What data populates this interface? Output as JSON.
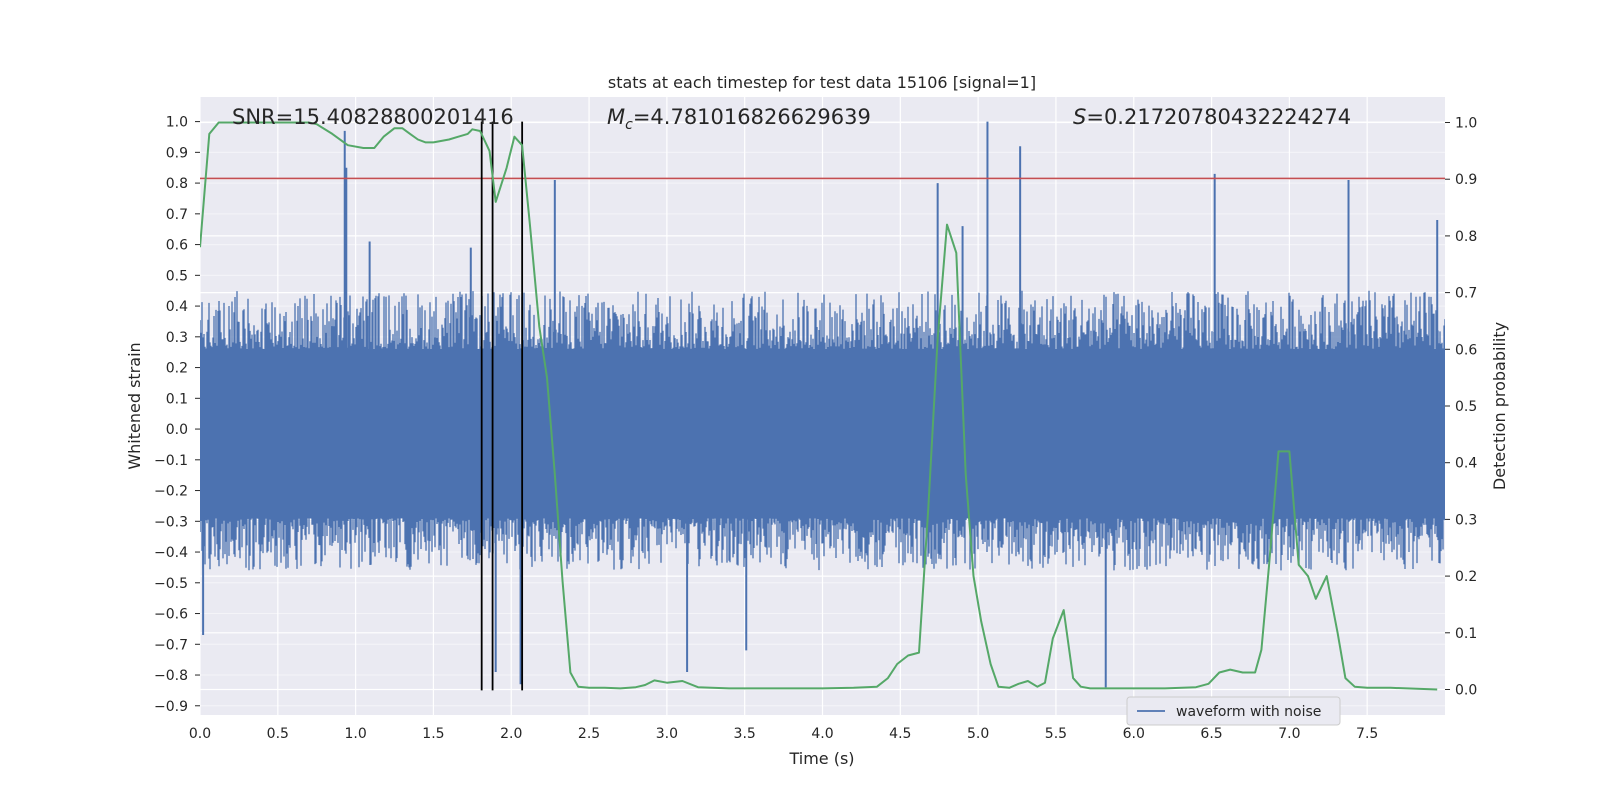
{
  "chart_data": {
    "type": "line",
    "title": "stats at each timestep for test data 15106 [signal=1]",
    "xlabel": "Time (s)",
    "ylabel": "Whitened strain",
    "y2label": "Detection probability",
    "xlim": [
      0.0,
      8.0
    ],
    "ylim": [
      -0.93,
      1.08
    ],
    "y2lim": [
      -0.045,
      1.045
    ],
    "xticks": [
      0.0,
      0.5,
      1.0,
      1.5,
      2.0,
      2.5,
      3.0,
      3.5,
      4.0,
      4.5,
      5.0,
      5.5,
      6.0,
      6.5,
      7.0,
      7.5
    ],
    "xtick_labels": [
      "0.0",
      "0.5",
      "1.0",
      "1.5",
      "2.0",
      "2.5",
      "3.0",
      "3.5",
      "4.0",
      "4.5",
      "5.0",
      "5.5",
      "6.0",
      "6.5",
      "7.0",
      "7.5"
    ],
    "yticks": [
      1.0,
      0.9,
      0.8,
      0.7,
      0.6,
      0.5,
      0.4,
      0.3,
      0.2,
      0.1,
      0.0,
      -0.1,
      -0.2,
      -0.3,
      -0.4,
      -0.5,
      -0.6,
      -0.7,
      -0.8,
      -0.9
    ],
    "ytick_labels": [
      "1.0",
      "0.9",
      "0.8",
      "0.7",
      "0.6",
      "0.5",
      "0.4",
      "0.3",
      "0.2",
      "0.1",
      "0.0",
      "−0.1",
      "−0.2",
      "−0.3",
      "−0.4",
      "−0.5",
      "−0.6",
      "−0.7",
      "−0.8",
      "−0.9"
    ],
    "y2ticks": [
      1.0,
      0.9,
      0.8,
      0.7,
      0.6,
      0.5,
      0.4,
      0.3,
      0.2,
      0.1,
      0.0
    ],
    "y2tick_labels": [
      "1.0",
      "0.9",
      "0.8",
      "0.7",
      "0.6",
      "0.5",
      "0.4",
      "0.3",
      "0.2",
      "0.1",
      "0.0"
    ],
    "annotations": {
      "snr": "SNR=15.40828800201416",
      "mc_symbol": "M",
      "mc_sub": "c",
      "mc_value": "=4.781016826629639",
      "s_symbol": "S",
      "s_value": "=0.21720780432224274"
    },
    "threshold": {
      "y": 0.815,
      "color": "#c44e52"
    },
    "vlines": [
      {
        "x": 1.81,
        "ymin": -0.85,
        "ymax": 1.0
      },
      {
        "x": 1.88,
        "ymin": -0.85,
        "ymax": 1.0
      },
      {
        "x": 2.07,
        "ymin": -0.85,
        "ymax": 1.0
      }
    ],
    "series": [
      {
        "name": "waveform with noise",
        "axis": "left",
        "color": "#4c72b0",
        "band": {
          "core": [
            -0.29,
            0.26
          ],
          "typical": [
            -0.46,
            0.45
          ]
        },
        "spikes": [
          {
            "x": 0.02,
            "y": -0.67
          },
          {
            "x": 0.93,
            "y": 0.97
          },
          {
            "x": 0.94,
            "y": 0.85
          },
          {
            "x": 1.09,
            "y": 0.61
          },
          {
            "x": 1.74,
            "y": 0.59
          },
          {
            "x": 1.9,
            "y": -0.79
          },
          {
            "x": 2.06,
            "y": -0.83
          },
          {
            "x": 2.28,
            "y": 0.81
          },
          {
            "x": 3.13,
            "y": -0.79
          },
          {
            "x": 3.51,
            "y": -0.72
          },
          {
            "x": 4.74,
            "y": 0.8
          },
          {
            "x": 4.9,
            "y": 0.66
          },
          {
            "x": 5.06,
            "y": 1.0
          },
          {
            "x": 5.27,
            "y": 0.92
          },
          {
            "x": 5.82,
            "y": -0.84
          },
          {
            "x": 6.52,
            "y": 0.83
          },
          {
            "x": 7.38,
            "y": 0.81
          },
          {
            "x": 7.95,
            "y": 0.68
          }
        ]
      },
      {
        "name": "detection probability",
        "axis": "right",
        "color": "#55a868",
        "x": [
          0.0,
          0.06,
          0.12,
          0.2,
          0.3,
          0.4,
          0.5,
          0.6,
          0.7,
          0.75,
          0.85,
          0.95,
          1.05,
          1.12,
          1.18,
          1.25,
          1.3,
          1.35,
          1.4,
          1.45,
          1.5,
          1.6,
          1.66,
          1.72,
          1.75,
          1.8,
          1.86,
          1.9,
          1.97,
          2.02,
          2.07,
          2.12,
          2.18,
          2.23,
          2.28,
          2.33,
          2.38,
          2.43,
          2.5,
          2.6,
          2.7,
          2.8,
          2.86,
          2.92,
          3.0,
          3.1,
          3.2,
          3.4,
          3.6,
          3.8,
          4.0,
          4.2,
          4.35,
          4.42,
          4.48,
          4.55,
          4.62,
          4.68,
          4.74,
          4.8,
          4.86,
          4.92,
          4.97,
          5.02,
          5.08,
          5.13,
          5.2,
          5.26,
          5.32,
          5.38,
          5.43,
          5.48,
          5.55,
          5.61,
          5.66,
          5.72,
          5.8,
          6.0,
          6.2,
          6.4,
          6.48,
          6.55,
          6.62,
          6.7,
          6.78,
          6.82,
          6.87,
          6.93,
          7.0,
          7.06,
          7.12,
          7.17,
          7.24,
          7.31,
          7.36,
          7.42,
          7.5,
          7.65,
          7.95
        ],
        "values": [
          0.78,
          0.98,
          1.0,
          1.0,
          1.0,
          1.0,
          1.0,
          1.0,
          1.0,
          0.997,
          0.98,
          0.96,
          0.955,
          0.955,
          0.975,
          0.99,
          0.99,
          0.98,
          0.97,
          0.965,
          0.965,
          0.97,
          0.975,
          0.98,
          0.988,
          0.985,
          0.95,
          0.86,
          0.92,
          0.975,
          0.96,
          0.82,
          0.64,
          0.55,
          0.38,
          0.19,
          0.03,
          0.005,
          0.003,
          0.003,
          0.002,
          0.004,
          0.008,
          0.016,
          0.012,
          0.015,
          0.004,
          0.002,
          0.002,
          0.002,
          0.002,
          0.003,
          0.005,
          0.02,
          0.045,
          0.06,
          0.065,
          0.32,
          0.62,
          0.82,
          0.77,
          0.38,
          0.2,
          0.12,
          0.045,
          0.005,
          0.003,
          0.01,
          0.015,
          0.005,
          0.012,
          0.09,
          0.14,
          0.02,
          0.005,
          0.002,
          0.002,
          0.002,
          0.002,
          0.004,
          0.01,
          0.03,
          0.035,
          0.03,
          0.03,
          0.07,
          0.22,
          0.42,
          0.42,
          0.22,
          0.2,
          0.16,
          0.2,
          0.1,
          0.02,
          0.005,
          0.003,
          0.003,
          0.0
        ]
      }
    ],
    "legend": {
      "label": "waveform with noise",
      "placement": "bottom-right"
    }
  }
}
